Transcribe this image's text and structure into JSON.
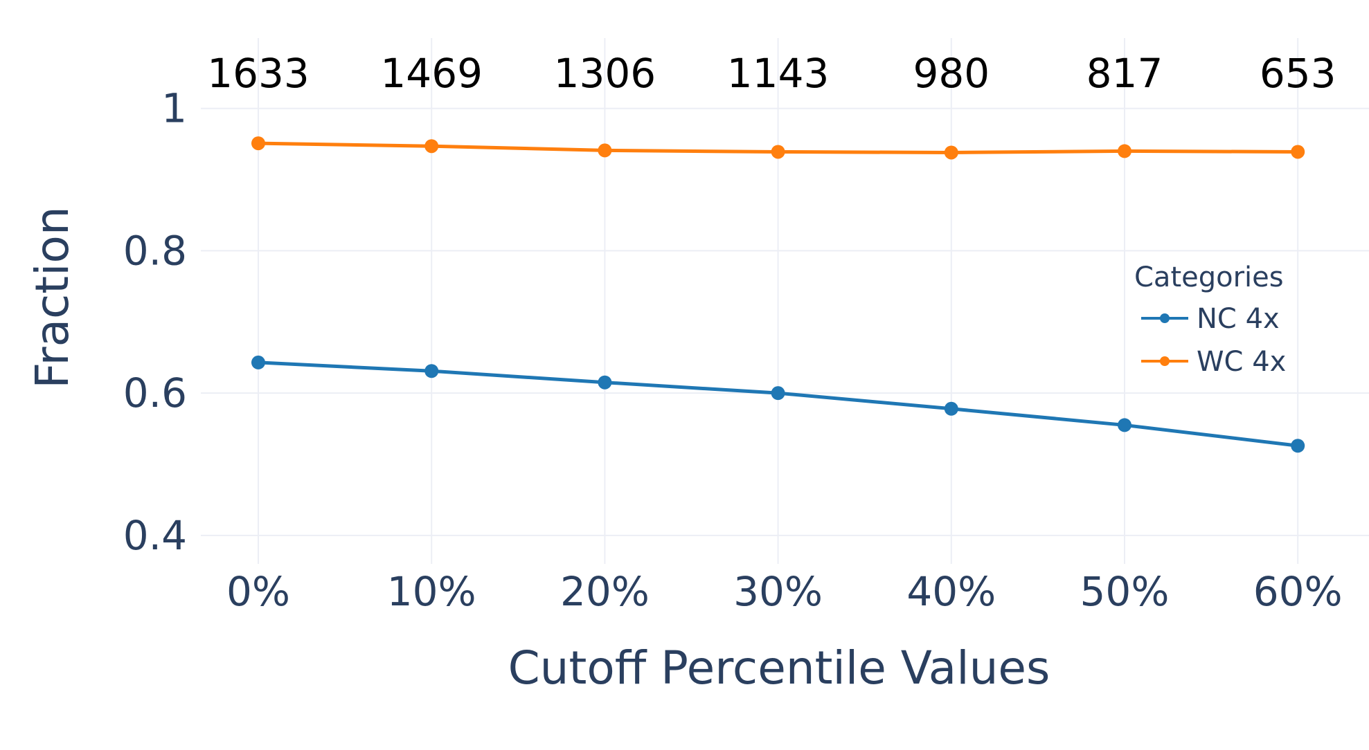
{
  "chart_data": {
    "type": "line",
    "title": "",
    "xlabel": "Cutoff Percentile Values",
    "ylabel": "Fraction",
    "categories": [
      "0%",
      "10%",
      "20%",
      "30%",
      "40%",
      "50%",
      "60%"
    ],
    "top_labels": [
      "1633",
      "1469",
      "1306",
      "1143",
      "980",
      "817",
      "653"
    ],
    "y_ticks": [
      "0.4",
      "0.6",
      "0.8",
      "1"
    ],
    "y_tick_values": [
      0.4,
      0.6,
      0.8,
      1.0
    ],
    "ylim": [
      0.36,
      1.06
    ],
    "grid": true,
    "legend": {
      "title": "Categories",
      "position": "right"
    },
    "series": [
      {
        "name": "NC 4x",
        "color": "#1f77b4",
        "values": [
          0.643,
          0.631,
          0.615,
          0.6,
          0.578,
          0.555,
          0.526
        ]
      },
      {
        "name": "WC 4x",
        "color": "#ff7f0e",
        "values": [
          0.951,
          0.947,
          0.941,
          0.939,
          0.938,
          0.94,
          0.939
        ]
      }
    ]
  }
}
